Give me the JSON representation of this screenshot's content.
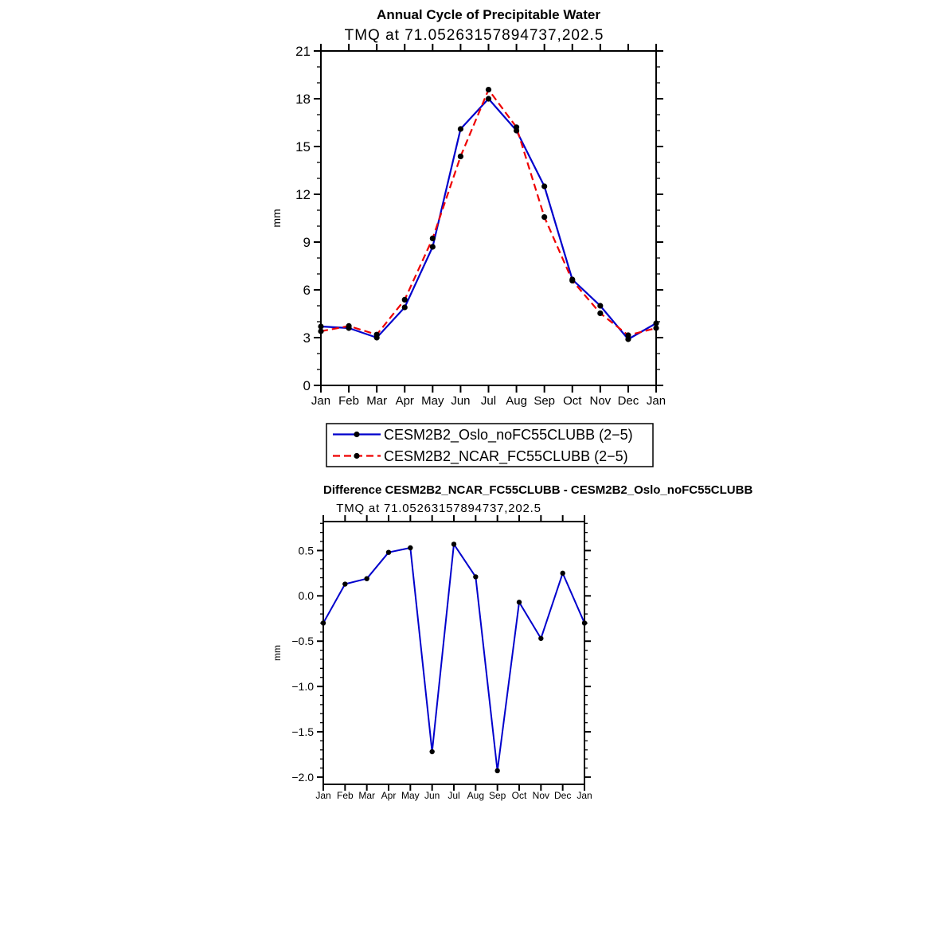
{
  "figure": {
    "background": "#ffffff",
    "text_color": "#000000",
    "axis_color": "#000000"
  },
  "chart_data": [
    {
      "type": "line",
      "title": "Annual Cycle of Precipitable Water",
      "subtitle": "TMQ at 71.05263157894737,202.5",
      "ylabel": "mm",
      "xlabel": "",
      "categories": [
        "Jan",
        "Feb",
        "Mar",
        "Apr",
        "May",
        "Jun",
        "Jul",
        "Aug",
        "Sep",
        "Oct",
        "Nov",
        "Dec",
        "Jan"
      ],
      "ylim": [
        0,
        21
      ],
      "ytick_values": [
        0,
        3,
        6,
        9,
        12,
        15,
        18,
        21
      ],
      "ytick_labels": [
        "0",
        "3",
        "6",
        "9",
        "12",
        "15",
        "18",
        "21"
      ],
      "minor_tick_step": 1,
      "grid": false,
      "legend_position": "below-box",
      "series": [
        {
          "name": "CESM2B2_Oslo_noFC55CLUBB (2−5)",
          "color": "#0000cc",
          "line_style": "solid",
          "marker": "filled-circle",
          "marker_color": "#000000",
          "values": [
            3.7,
            3.6,
            3.0,
            4.9,
            8.7,
            16.1,
            18.0,
            16.0,
            12.5,
            6.65,
            5.0,
            2.9,
            3.9
          ]
        },
        {
          "name": "CESM2B2_NCAR_FC55CLUBB (2−5)",
          "color": "#ee0000",
          "line_style": "dashed",
          "marker": "filled-circle",
          "marker_color": "#000000",
          "values": [
            3.4,
            3.73,
            3.19,
            5.38,
            9.23,
            14.38,
            18.57,
            16.21,
            10.57,
            6.58,
            4.53,
            3.15,
            3.6
          ]
        }
      ]
    },
    {
      "type": "line",
      "title": "Difference CESM2B2_NCAR_FC55CLUBB - CESM2B2_Oslo_noFC55CLUBB",
      "subtitle": "TMQ at 71.05263157894737,202.5",
      "ylabel": "mm",
      "xlabel": "",
      "categories": [
        "Jan",
        "Feb",
        "Mar",
        "Apr",
        "May",
        "Jun",
        "Jul",
        "Aug",
        "Sep",
        "Oct",
        "Nov",
        "Dec",
        "Jan"
      ],
      "ylim": [
        -2.08,
        0.82
      ],
      "ytick_values": [
        0.5,
        0.0,
        -0.5,
        -1.0,
        -1.5,
        -2.0
      ],
      "ytick_labels": [
        "0.5",
        "0.0",
        "−0.5",
        "−1.0",
        "−1.5",
        "−2.0"
      ],
      "minor_tick_step": 0.1,
      "grid": false,
      "legend_position": "none",
      "series": [
        {
          "color": "#0000cc",
          "line_style": "solid",
          "marker": "filled-circle",
          "marker_color": "#000000",
          "values": [
            -0.3,
            0.13,
            0.19,
            0.48,
            0.53,
            -1.72,
            0.57,
            0.21,
            -1.93,
            -0.07,
            -0.47,
            0.25,
            -0.3
          ]
        }
      ]
    }
  ]
}
